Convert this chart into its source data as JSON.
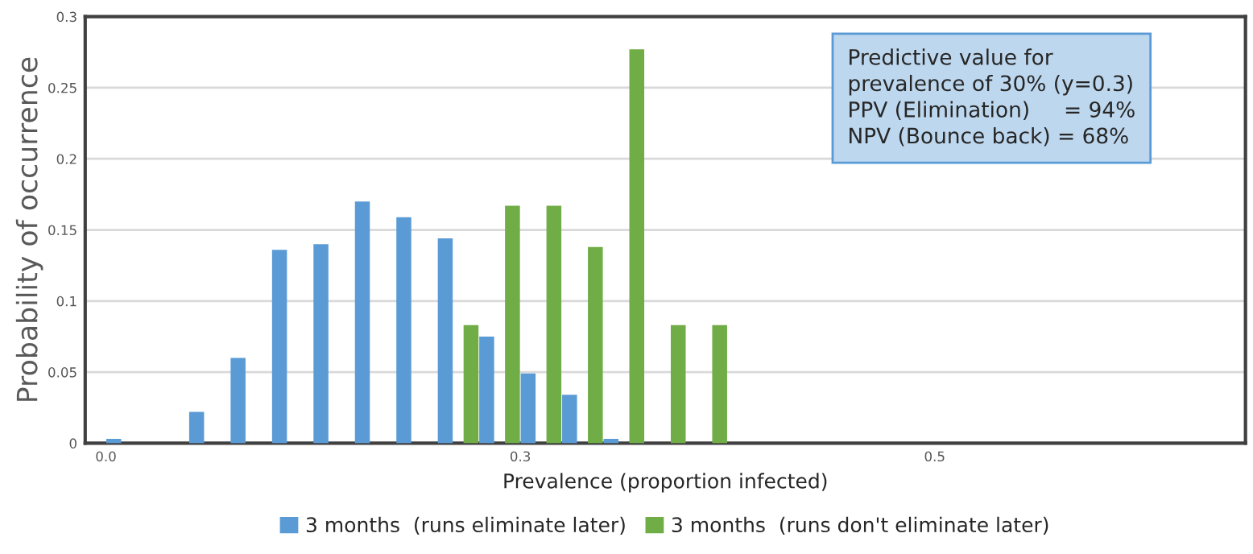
{
  "chart_data": {
    "type": "bar",
    "xlabel": "Prevalence (proportion infected)",
    "ylabel": "Probability of occurrence",
    "categories": [
      "0.0",
      null,
      null,
      null,
      null,
      null,
      null,
      null,
      null,
      null,
      "0.3",
      null,
      null,
      null,
      null,
      null,
      null,
      null,
      null,
      null,
      "0.5",
      null,
      null,
      null,
      null,
      null,
      null,
      null
    ],
    "series": [
      {
        "name": "3 months  (runs eliminate later)",
        "color": "#5b9bd5",
        "values": [
          0.003,
          null,
          0.022,
          0.06,
          0.136,
          0.14,
          0.17,
          0.159,
          0.144,
          0.075,
          0.049,
          0.034,
          0.003,
          null,
          null,
          null,
          null,
          null,
          null,
          null,
          null,
          null,
          null,
          null,
          null,
          null,
          null,
          null
        ]
      },
      {
        "name": "3 months  (runs don't eliminate later)",
        "color": "#70ad47",
        "values": [
          null,
          null,
          null,
          null,
          null,
          null,
          null,
          null,
          null,
          0.083,
          0.167,
          0.167,
          0.138,
          0.277,
          0.083,
          0.083,
          null,
          null,
          null,
          null,
          null,
          null,
          null,
          null,
          null,
          null,
          null,
          null
        ]
      }
    ],
    "ylim": [
      0,
      0.3
    ],
    "yticks": [
      0,
      0.05,
      0.1,
      0.15,
      0.2,
      0.25,
      0.3
    ],
    "grid": "y",
    "legend": "bottom",
    "annotations": [
      "Predictive value for\nprevalence of 30% (y=0.3)\nPPV (Elimination)     = 94%\nNPV (Bounce back) = 68%"
    ]
  }
}
